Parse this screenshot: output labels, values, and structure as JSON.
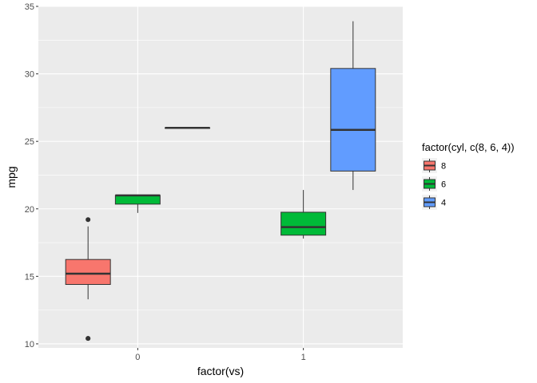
{
  "chart_data": {
    "type": "boxplot",
    "xlabel": "factor(vs)",
    "ylabel": "mpg",
    "x_categories": [
      "0",
      "1"
    ],
    "ylim": [
      9.7,
      35
    ],
    "y_ticks": [
      10,
      15,
      20,
      25,
      30,
      35
    ],
    "grid": true,
    "legend": {
      "title": "factor(cyl, c(8, 6, 4))",
      "position": "right",
      "items": [
        {
          "label": "8",
          "color": "#F8766D"
        },
        {
          "label": "6",
          "color": "#00BA38"
        },
        {
          "label": "4",
          "color": "#619CFF"
        }
      ]
    },
    "series": [
      {
        "name": "8",
        "color": "#F8766D",
        "boxes": [
          {
            "x": "0",
            "min": 13.3,
            "q1": 14.4,
            "median": 15.2,
            "q3": 16.25,
            "max": 18.7,
            "outliers": [
              10.4,
              10.4,
              19.2
            ]
          },
          null
        ]
      },
      {
        "name": "6",
        "color": "#00BA38",
        "boxes": [
          {
            "x": "0",
            "min": 19.7,
            "q1": 20.35,
            "median": 21.0,
            "q3": 21.0,
            "max": 21.0,
            "outliers": []
          },
          {
            "x": "1",
            "min": 17.8,
            "q1": 18.05,
            "median": 18.65,
            "q3": 19.75,
            "max": 21.4,
            "outliers": []
          }
        ]
      },
      {
        "name": "4",
        "color": "#619CFF",
        "boxes": [
          {
            "x": "0",
            "min": 26.0,
            "q1": 26.0,
            "median": 26.0,
            "q3": 26.0,
            "max": 26.0,
            "outliers": []
          },
          {
            "x": "1",
            "min": 21.4,
            "q1": 22.8,
            "median": 25.85,
            "q3": 30.4,
            "max": 33.9,
            "outliers": []
          }
        ]
      }
    ]
  }
}
